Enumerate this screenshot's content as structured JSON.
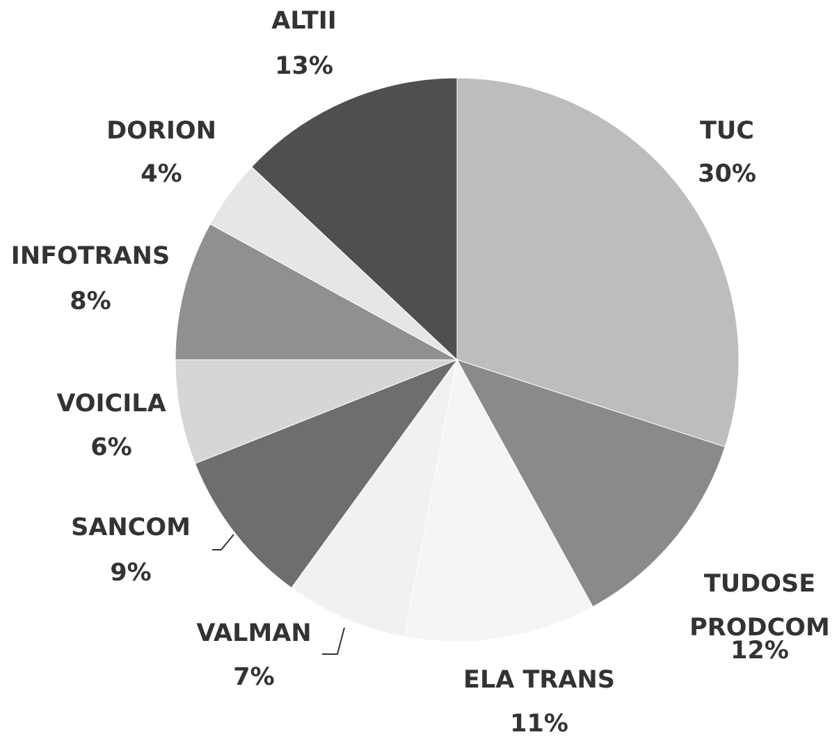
{
  "chart_data": {
    "type": "pie",
    "categories": [
      "TUC",
      "TUDOSE PRODCOM",
      "ELA TRANS",
      "VALMAN",
      "SANCOM",
      "VOICILA",
      "INFOTRANS",
      "DORION",
      "ALTII"
    ],
    "values": [
      30,
      12,
      11,
      7,
      9,
      6,
      8,
      4,
      13
    ],
    "value_labels": [
      "30%",
      "12%",
      "11%",
      "7%",
      "9%",
      "6%",
      "8%",
      "4%",
      "13%"
    ],
    "colors": [
      "#bdbdbd",
      "#8a8a8a",
      "#f5f5f5",
      "#f1f1f1",
      "#6e6e6e",
      "#d6d6d6",
      "#909090",
      "#e6e6e6",
      "#4f4f4f"
    ]
  }
}
